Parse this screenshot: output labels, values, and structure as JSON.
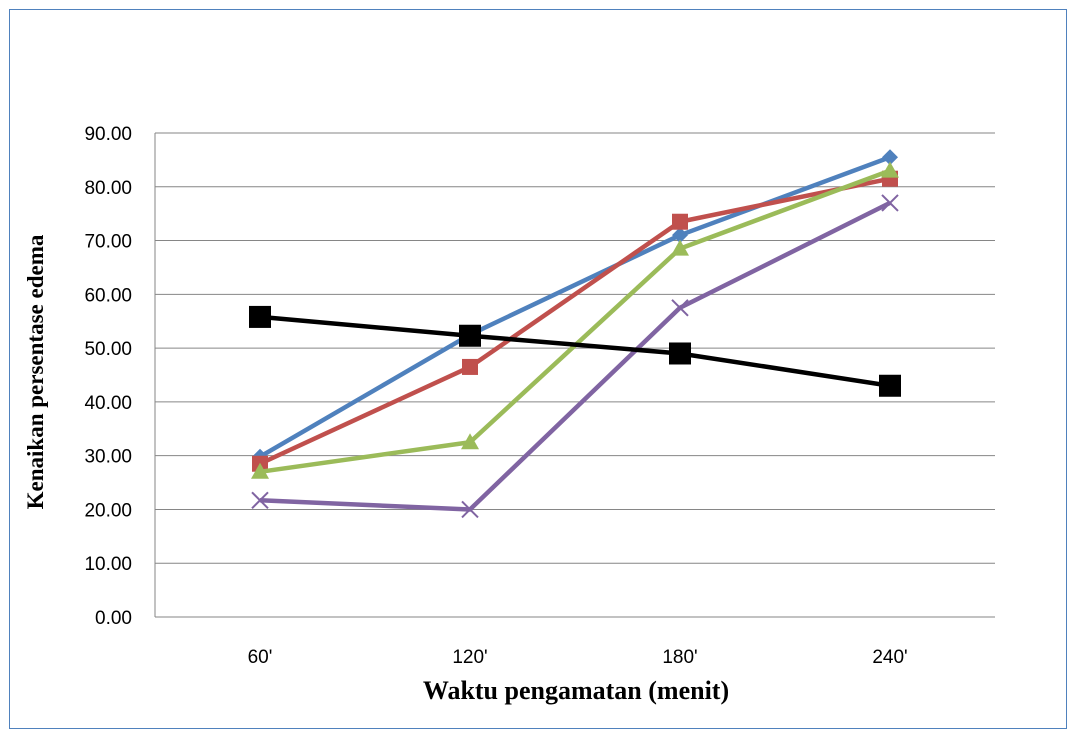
{
  "chart_data": {
    "type": "line",
    "title": "",
    "xlabel": "Waktu pengamatan (menit)",
    "ylabel": "Kenaikan persentase edema",
    "categories": [
      "60'",
      "120'",
      "180'",
      "240'"
    ],
    "ylim": [
      0,
      90
    ],
    "yticks": [
      "0.00",
      "10.00",
      "20.00",
      "30.00",
      "40.00",
      "50.00",
      "60.00",
      "70.00",
      "80.00",
      "90.00"
    ],
    "grid": true,
    "legend": "none",
    "series": [
      {
        "color": "#4f81bd",
        "marker": "diamond",
        "values": [
          29.8,
          52.5,
          71.0,
          85.5
        ]
      },
      {
        "color": "#c0504d",
        "marker": "square",
        "values": [
          28.5,
          46.5,
          73.5,
          81.5
        ]
      },
      {
        "color": "#9bbb59",
        "marker": "triangle",
        "values": [
          27.0,
          32.5,
          68.5,
          83.0
        ]
      },
      {
        "color": "#8064a2",
        "marker": "x",
        "values": [
          21.7,
          20.0,
          57.5,
          77.0
        ]
      },
      {
        "color": "#000000",
        "marker": "square-large",
        "values": [
          55.8,
          52.3,
          49.0,
          43.0
        ]
      }
    ]
  }
}
